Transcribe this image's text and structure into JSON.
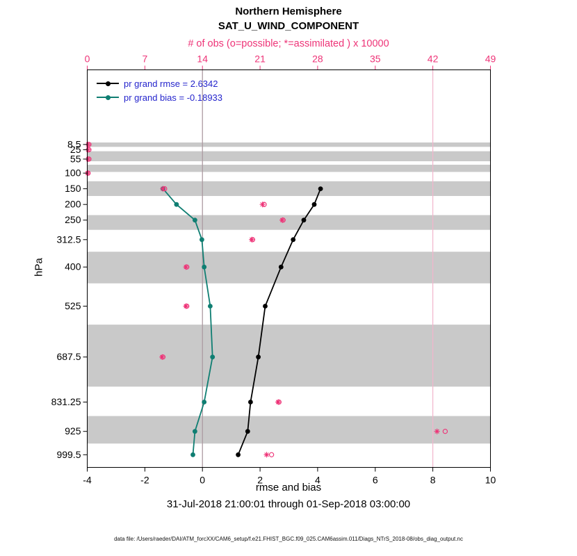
{
  "header": {
    "title_line1": "Northern Hemisphere",
    "title_line2": "SAT_U_WIND_COMPONENT",
    "obs_axis_label": "# of obs (o=possible; *=assimilated ) x 10000"
  },
  "legend": {
    "text_color": "#2424cc",
    "items": [
      {
        "label": "pr grand rmse = 2.6342",
        "color": "#000000"
      },
      {
        "label": "pr grand bias = -0.18933",
        "color": "#0f7e72"
      }
    ]
  },
  "footer": {
    "date_range": "31-Jul-2018 21:00:01 through 01-Sep-2018 03:00:00",
    "data_file": "data file: /Users/raeder/DAI/ATM_forcXX/CAM6_setup/f.e21.FHIST_BGC.f09_025.CAM6assim.011/Diags_NTrS_2018-08/obs_diag_output.nc"
  },
  "chart_data": {
    "type": "line",
    "title": "Northern Hemisphere SAT_U_WIND_COMPONENT vertical profile",
    "x_bottom": {
      "label": "rmse and bias",
      "range": [
        -4,
        10
      ],
      "ticks": [
        -4,
        -2,
        0,
        2,
        4,
        6,
        8,
        10
      ]
    },
    "x_top": {
      "label": "# of obs (o=possible; *=assimilated ) x 10000",
      "range": [
        0,
        49
      ],
      "ticks": [
        0,
        7,
        14,
        21,
        28,
        35,
        42,
        49
      ],
      "color": "#ee3377"
    },
    "y_axis": {
      "label": "hPa",
      "range": [
        -230,
        1040
      ],
      "increases": "downward",
      "ticks": [
        8.5,
        25,
        55,
        100,
        150,
        200,
        250,
        312.5,
        400,
        525,
        687.5,
        831.25,
        925,
        999.5
      ]
    },
    "band_color": "#c9c9c9",
    "shaded_bands_hpa": [
      [
        2,
        16
      ],
      [
        30,
        62
      ],
      [
        73,
        96
      ],
      [
        126,
        173
      ],
      [
        234,
        281
      ],
      [
        351,
        452
      ],
      [
        584,
        782
      ],
      [
        876,
        964
      ]
    ],
    "zero_reference_x": 0,
    "obs_axis_gridlines": [
      14,
      42
    ],
    "series": [
      {
        "name": "pr grand rmse",
        "color": "#000000",
        "marker": "filled-circle",
        "axis": "bottom",
        "levels_hpa": [
          150,
          200,
          250,
          312.5,
          400,
          525,
          687.5,
          831.25,
          925,
          999.5
        ],
        "values": [
          4.1,
          3.88,
          3.52,
          3.15,
          2.73,
          2.18,
          1.94,
          1.67,
          1.57,
          1.24
        ]
      },
      {
        "name": "pr grand bias",
        "color": "#0f7e72",
        "marker": "filled-circle",
        "axis": "bottom",
        "levels_hpa": [
          150,
          200,
          250,
          312.5,
          400,
          525,
          687.5,
          831.25,
          925,
          999.5
        ],
        "values": [
          -1.37,
          -0.9,
          -0.26,
          -0.02,
          0.06,
          0.27,
          0.35,
          0.06,
          -0.26,
          -0.33
        ]
      }
    ],
    "obs_counts_x10000": {
      "color": "#ee3377",
      "levels_hpa": [
        8.5,
        25,
        55,
        100,
        150,
        200,
        250,
        312.5,
        400,
        525,
        687.5,
        831.25,
        925,
        999.5
      ],
      "possible_o": [
        0.2,
        0.2,
        0.2,
        0.1,
        9.4,
        21.5,
        23.8,
        20.1,
        12.1,
        12.1,
        9.2,
        23.3,
        43.5,
        22.4
      ],
      "assimilated_star": [
        0.1,
        0.1,
        0.1,
        0.05,
        9.2,
        21.3,
        23.7,
        20.0,
        12.0,
        12.0,
        9.1,
        23.2,
        42.5,
        21.8
      ]
    }
  }
}
